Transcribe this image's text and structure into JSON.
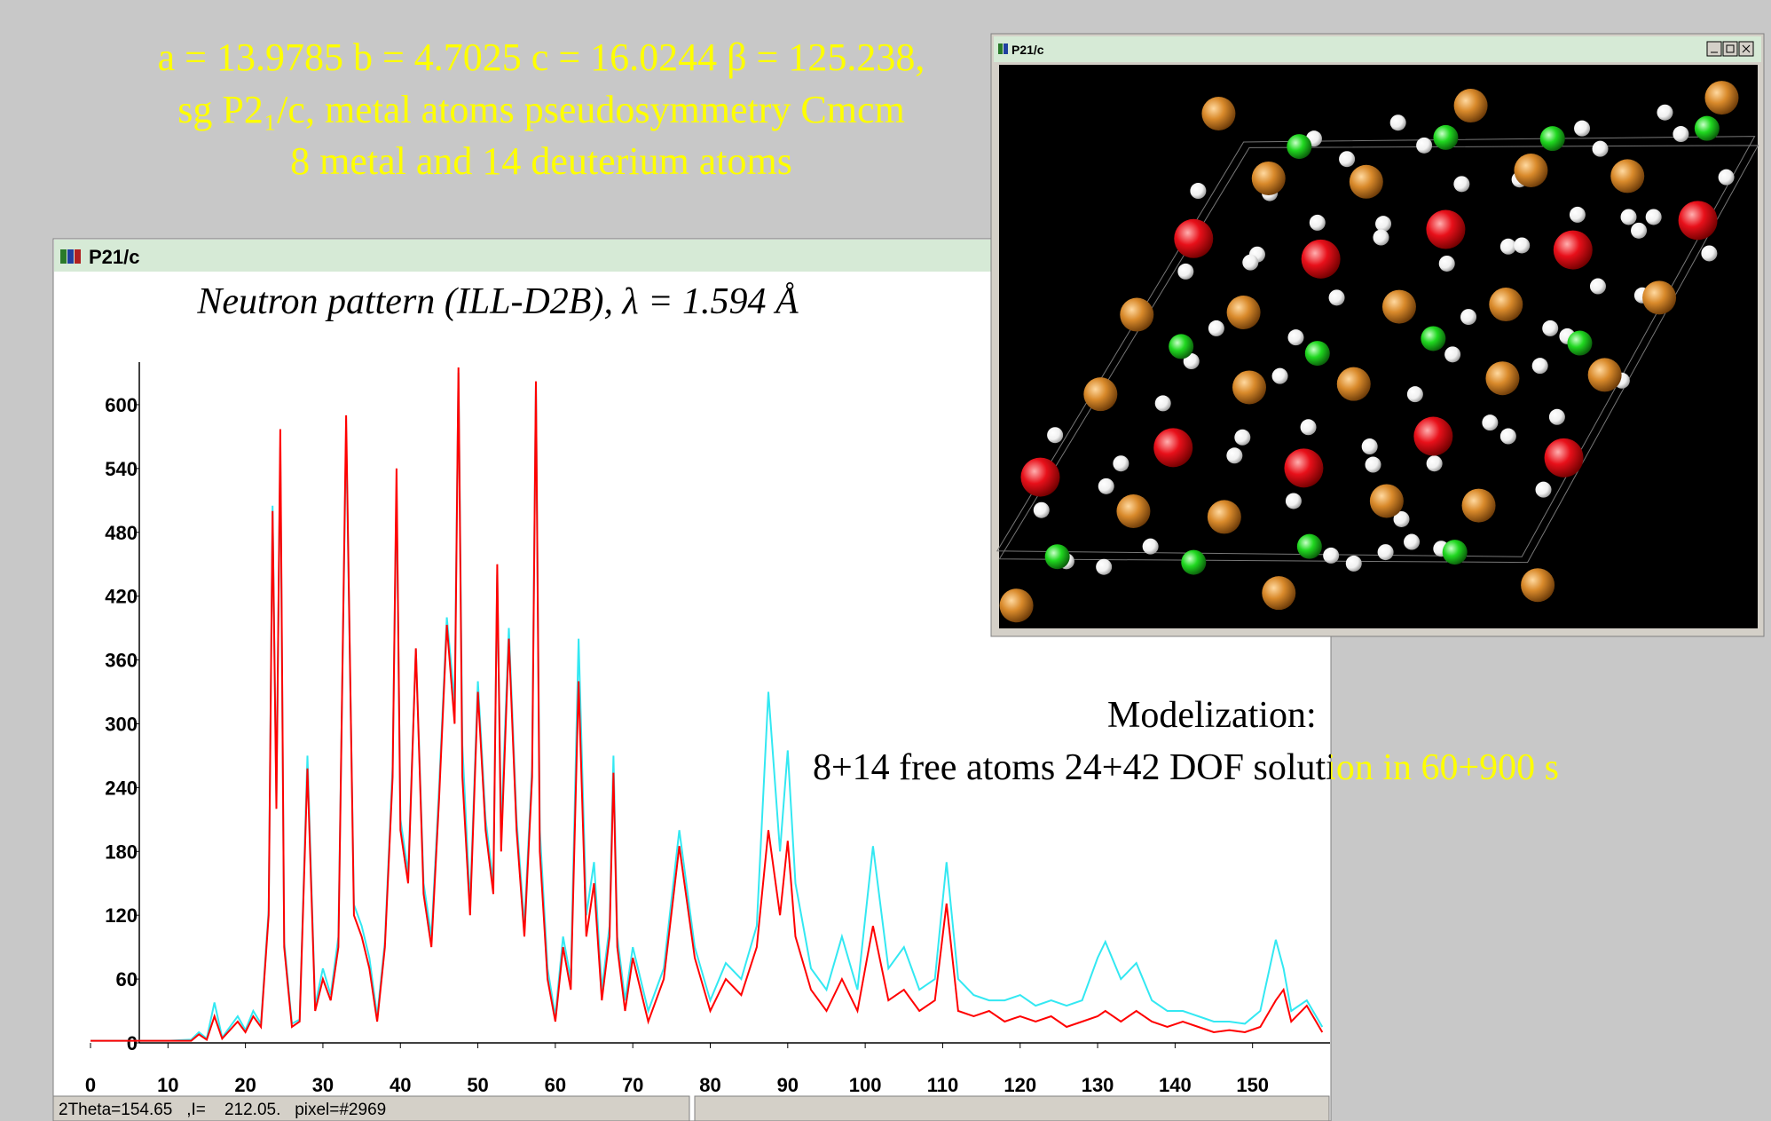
{
  "header": {
    "lines": [
      "a = 13.9785 b = 4.7025 c = 16.0244 β = 125.238,",
      "sg P2₁/c, metal atoms pseudosymmetry Cmcm",
      "8 metal and 14 deuterium atoms"
    ]
  },
  "pattern_window": {
    "title": "P21/c",
    "status": "2Theta=154.65   ,I=    212.05.   pixel=#2969"
  },
  "structure_window": {
    "title": "P21/c"
  },
  "annotation": {
    "lines": [
      "Modelization:",
      "8+14 free atoms      24+42 DOF   solution in 60+900 s"
    ]
  },
  "chart_data": {
    "type": "line",
    "title": "Neutron pattern (ILL-D2B), λ = 1.594 Å",
    "x": [
      0,
      10,
      13,
      14,
      15,
      16,
      17,
      19,
      20,
      21,
      22,
      23,
      23.5,
      24,
      24.5,
      25,
      26,
      27,
      28,
      29,
      30,
      31,
      32,
      33,
      34,
      35,
      36,
      37,
      38,
      39,
      39.5,
      40,
      41,
      42,
      43,
      44,
      45,
      46,
      47,
      47.5,
      48,
      49,
      50,
      51,
      52,
      52.5,
      53,
      54,
      55,
      56,
      57,
      57.5,
      58,
      59,
      60,
      61,
      62,
      63,
      64,
      65,
      66,
      67,
      67.5,
      68,
      69,
      70,
      72,
      74,
      76,
      78,
      80,
      82,
      84,
      86,
      87.5,
      89,
      90,
      91,
      93,
      95,
      97,
      99,
      101,
      103,
      105,
      107,
      109,
      110.5,
      112,
      114,
      116,
      118,
      120,
      122,
      124,
      126,
      128,
      130,
      131,
      133,
      135,
      137,
      139,
      141,
      143,
      145,
      147,
      149,
      151,
      153,
      154,
      155,
      157,
      159
    ],
    "series": [
      {
        "color": "#33e8f2",
        "values": [
          2,
          2,
          3,
          10,
          4,
          38,
          5,
          25,
          12,
          30,
          18,
          125,
          505,
          230,
          560,
          95,
          18,
          22,
          270,
          35,
          70,
          45,
          100,
          575,
          130,
          110,
          80,
          25,
          95,
          260,
          520,
          210,
          160,
          370,
          150,
          100,
          240,
          400,
          320,
          630,
          280,
          130,
          340,
          210,
          150,
          440,
          200,
          390,
          210,
          110,
          260,
          620,
          200,
          70,
          25,
          100,
          60,
          380,
          120,
          170,
          50,
          110,
          270,
          100,
          40,
          90,
          30,
          70,
          200,
          90,
          40,
          75,
          60,
          110,
          330,
          180,
          275,
          150,
          70,
          50,
          100,
          50,
          185,
          70,
          90,
          50,
          60,
          170,
          60,
          45,
          40,
          40,
          45,
          35,
          40,
          35,
          40,
          80,
          95,
          60,
          75,
          40,
          30,
          30,
          25,
          20,
          20,
          18,
          30,
          97,
          70,
          30,
          40,
          15
        ]
      },
      {
        "color": "#ff0000",
        "values": [
          2,
          2,
          2,
          8,
          3,
          25,
          4,
          20,
          10,
          25,
          15,
          120,
          500,
          220,
          577,
          90,
          15,
          20,
          258,
          30,
          60,
          40,
          90,
          590,
          120,
          100,
          70,
          20,
          90,
          250,
          540,
          200,
          150,
          371,
          140,
          90,
          230,
          393,
          300,
          635,
          250,
          120,
          330,
          200,
          140,
          450,
          180,
          380,
          200,
          100,
          250,
          622,
          180,
          60,
          20,
          90,
          50,
          340,
          100,
          150,
          40,
          100,
          254,
          90,
          30,
          80,
          20,
          60,
          185,
          80,
          30,
          60,
          45,
          90,
          200,
          120,
          190,
          100,
          50,
          30,
          60,
          30,
          110,
          40,
          50,
          30,
          40,
          131,
          30,
          25,
          30,
          20,
          25,
          20,
          25,
          15,
          20,
          25,
          30,
          20,
          30,
          20,
          15,
          20,
          15,
          10,
          12,
          10,
          15,
          40,
          50,
          20,
          35,
          10
        ]
      }
    ],
    "xlim": [
      0,
      160
    ],
    "xticks": [
      0,
      10,
      20,
      30,
      40,
      50,
      60,
      70,
      80,
      90,
      100,
      110,
      120,
      130,
      140,
      150
    ],
    "ylim": [
      0,
      640
    ],
    "yticks": [
      0,
      60,
      120,
      180,
      240,
      300,
      360,
      420,
      480,
      540,
      600
    ],
    "grid": false
  }
}
